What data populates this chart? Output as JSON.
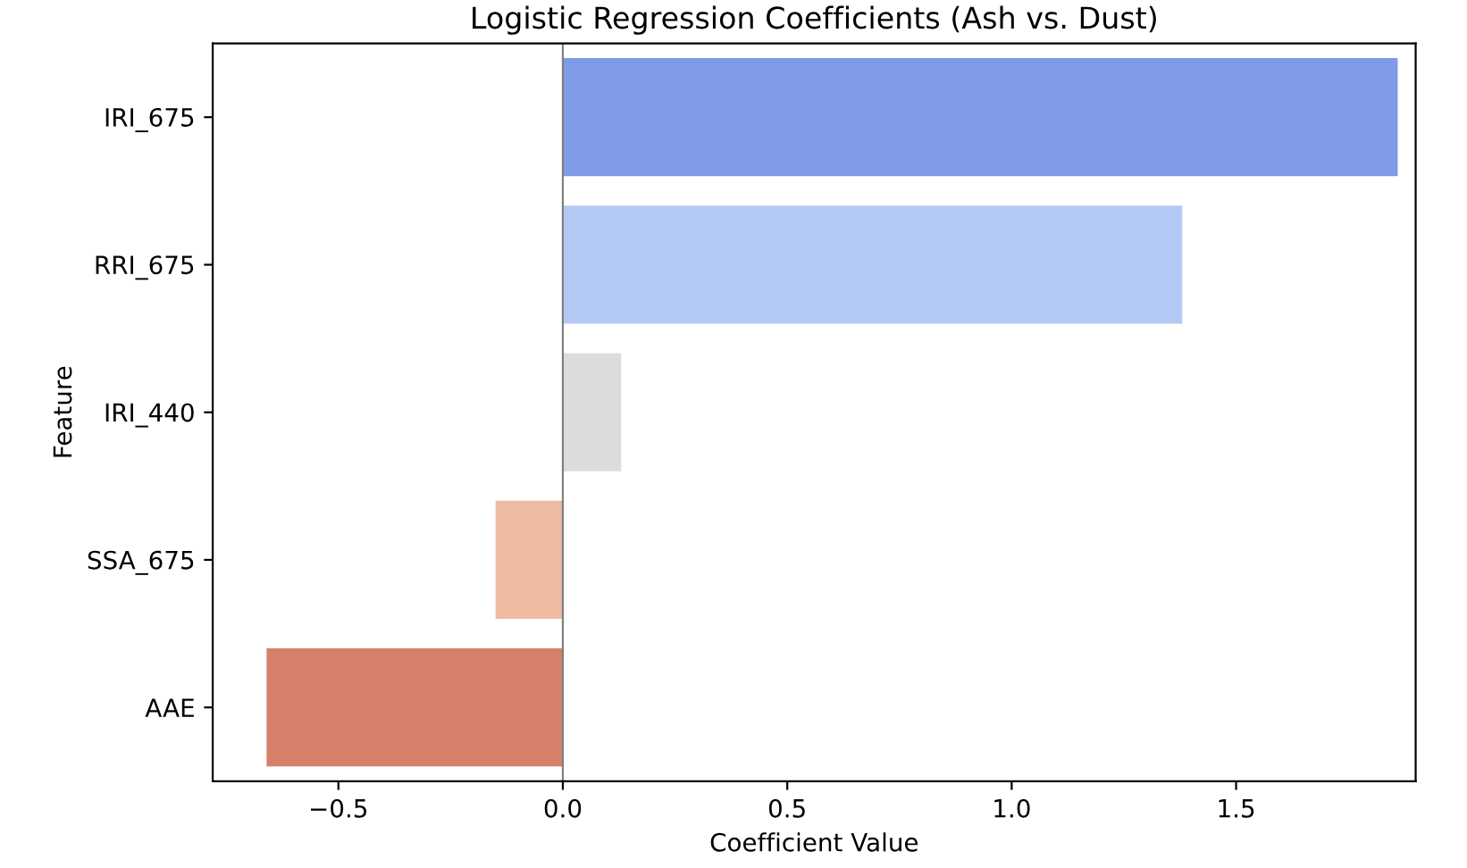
{
  "chart_data": {
    "type": "bar",
    "orientation": "horizontal",
    "title": "Logistic Regression Coefficients (Ash vs. Dust)",
    "xlabel": "Coefficient Value",
    "ylabel": "Feature",
    "categories": [
      "IRI_675",
      "RRI_675",
      "IRI_440",
      "SSA_675",
      "AAE"
    ],
    "values": [
      1.86,
      1.38,
      0.13,
      -0.15,
      -0.66
    ],
    "colors": [
      "#7f9ae6",
      "#b3c9f4",
      "#dcdcdc",
      "#edbca3",
      "#d6806a"
    ],
    "xlim": [
      -0.78,
      1.9
    ],
    "xticks": [
      {
        "value": -0.5,
        "label": "−0.5"
      },
      {
        "value": 0,
        "label": "0.0"
      },
      {
        "value": 0.5,
        "label": "0.5"
      },
      {
        "value": 1.0,
        "label": "1.0"
      },
      {
        "value": 1.5,
        "label": "1.5"
      }
    ],
    "ref_lines": [
      {
        "axis": "x",
        "value": 0,
        "label": null,
        "color": "#808080"
      }
    ],
    "grid": false,
    "legend": false
  }
}
